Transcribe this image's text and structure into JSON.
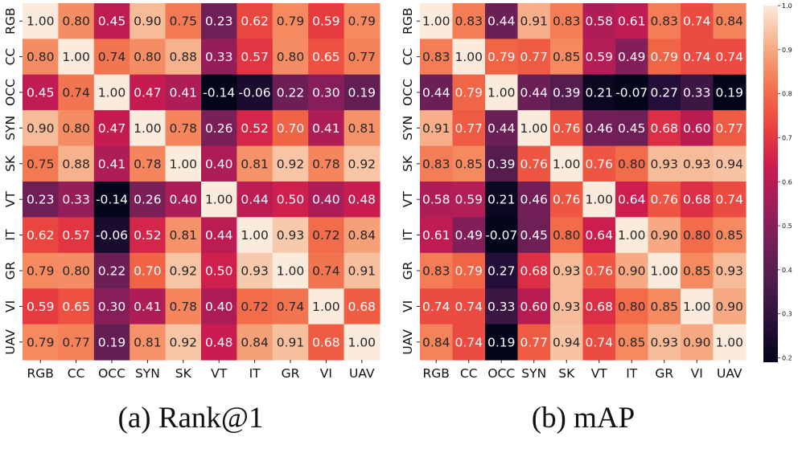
{
  "chart_data": [
    {
      "type": "heatmap",
      "caption": "(a) Rank@1",
      "categories": [
        "RGB",
        "CC",
        "OCC",
        "SYN",
        "SK",
        "VT",
        "IT",
        "GR",
        "VI",
        "UAV"
      ],
      "values": [
        [
          1.0,
          0.8,
          0.45,
          0.9,
          0.75,
          0.23,
          0.62,
          0.79,
          0.59,
          0.79
        ],
        [
          0.8,
          1.0,
          0.74,
          0.8,
          0.88,
          0.33,
          0.57,
          0.8,
          0.65,
          0.77
        ],
        [
          0.45,
          0.74,
          1.0,
          0.47,
          0.41,
          -0.14,
          -0.06,
          0.22,
          0.3,
          0.19
        ],
        [
          0.9,
          0.8,
          0.47,
          1.0,
          0.78,
          0.26,
          0.52,
          0.7,
          0.41,
          0.81
        ],
        [
          0.75,
          0.88,
          0.41,
          0.78,
          1.0,
          0.4,
          0.81,
          0.92,
          0.78,
          0.92
        ],
        [
          0.23,
          0.33,
          -0.14,
          0.26,
          0.4,
          1.0,
          0.44,
          0.5,
          0.4,
          0.48
        ],
        [
          0.62,
          0.57,
          -0.06,
          0.52,
          0.81,
          0.44,
          1.0,
          0.93,
          0.72,
          0.84
        ],
        [
          0.79,
          0.8,
          0.22,
          0.7,
          0.92,
          0.5,
          0.93,
          1.0,
          0.74,
          0.91
        ],
        [
          0.59,
          0.65,
          0.3,
          0.41,
          0.78,
          0.4,
          0.72,
          0.74,
          1.0,
          0.68
        ],
        [
          0.79,
          0.77,
          0.19,
          0.81,
          0.92,
          0.48,
          0.84,
          0.91,
          0.68,
          1.0
        ]
      ],
      "value_format": "2-decimal",
      "color_range": [
        -0.14,
        1.0
      ],
      "colormap": "rocket",
      "colorbar": false
    },
    {
      "type": "heatmap",
      "caption": "(b) mAP",
      "categories": [
        "RGB",
        "CC",
        "OCC",
        "SYN",
        "SK",
        "VT",
        "IT",
        "GR",
        "VI",
        "UAV"
      ],
      "values": [
        [
          1.0,
          0.83,
          0.44,
          0.91,
          0.83,
          0.58,
          0.61,
          0.83,
          0.74,
          0.84
        ],
        [
          0.83,
          1.0,
          0.79,
          0.77,
          0.85,
          0.59,
          0.49,
          0.79,
          0.74,
          0.74
        ],
        [
          0.44,
          0.79,
          1.0,
          0.44,
          0.39,
          0.21,
          -0.07,
          0.27,
          0.33,
          0.19
        ],
        [
          0.91,
          0.77,
          0.44,
          1.0,
          0.76,
          0.46,
          0.45,
          0.68,
          0.6,
          0.77
        ],
        [
          0.83,
          0.85,
          0.39,
          0.76,
          1.0,
          0.76,
          0.8,
          0.93,
          0.93,
          0.94
        ],
        [
          0.58,
          0.59,
          0.21,
          0.46,
          0.76,
          1.0,
          0.64,
          0.76,
          0.68,
          0.74
        ],
        [
          0.61,
          0.49,
          -0.07,
          0.45,
          0.8,
          0.64,
          1.0,
          0.9,
          0.8,
          0.85
        ],
        [
          0.83,
          0.79,
          0.27,
          0.68,
          0.93,
          0.76,
          0.9,
          1.0,
          0.85,
          0.93
        ],
        [
          0.74,
          0.74,
          0.33,
          0.6,
          0.93,
          0.68,
          0.8,
          0.85,
          1.0,
          0.9
        ],
        [
          0.84,
          0.74,
          0.19,
          0.77,
          0.94,
          0.74,
          0.85,
          0.93,
          0.9,
          1.0
        ]
      ],
      "value_format": "2-decimal",
      "color_range": [
        0.19,
        1.0
      ],
      "colormap": "rocket",
      "colorbar": true,
      "colorbar_ticks": [
        "0.2",
        "0.3",
        "0.4",
        "0.5",
        "0.6",
        "0.7",
        "0.8",
        "0.9",
        "1.0"
      ]
    }
  ]
}
